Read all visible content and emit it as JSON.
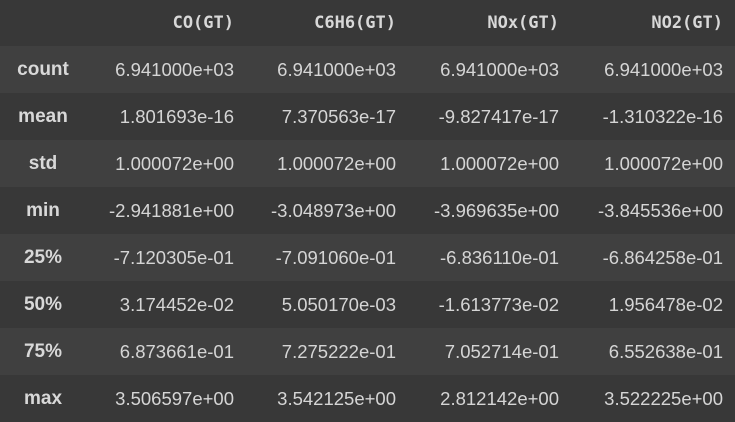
{
  "table": {
    "columns": [
      "CO(GT)",
      "C6H6(GT)",
      "NOx(GT)",
      "NO2(GT)"
    ],
    "rows": [
      {
        "label": "count",
        "values": [
          "6.941000e+03",
          "6.941000e+03",
          "6.941000e+03",
          "6.941000e+03"
        ]
      },
      {
        "label": "mean",
        "values": [
          "1.801693e-16",
          "7.370563e-17",
          "-9.827417e-17",
          "-1.310322e-16"
        ]
      },
      {
        "label": "std",
        "values": [
          "1.000072e+00",
          "1.000072e+00",
          "1.000072e+00",
          "1.000072e+00"
        ]
      },
      {
        "label": "min",
        "values": [
          "-2.941881e+00",
          "-3.048973e+00",
          "-3.969635e+00",
          "-3.845536e+00"
        ]
      },
      {
        "label": "25%",
        "values": [
          "-7.120305e-01",
          "-7.091060e-01",
          "-6.836110e-01",
          "-6.864258e-01"
        ]
      },
      {
        "label": "50%",
        "values": [
          "3.174452e-02",
          "5.050170e-03",
          "-1.613773e-02",
          "1.956478e-02"
        ]
      },
      {
        "label": "75%",
        "values": [
          "6.873661e-01",
          "7.275222e-01",
          "7.052714e-01",
          "6.552638e-01"
        ]
      },
      {
        "label": "max",
        "values": [
          "3.506597e+00",
          "3.542125e+00",
          "2.812142e+00",
          "3.522225e+00"
        ]
      }
    ]
  }
}
